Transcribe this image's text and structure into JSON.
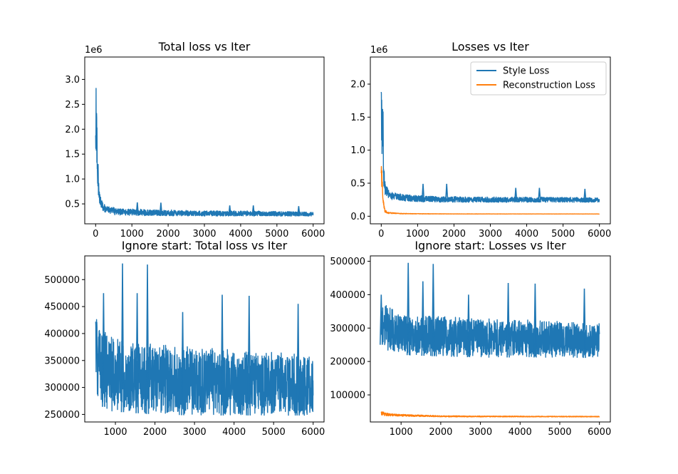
{
  "chart_data": [
    {
      "type": "line",
      "title": "Total loss vs Iter",
      "xlabel": "",
      "ylabel": "",
      "y_offset_label": "1e6",
      "xlim": [
        -300,
        6300
      ],
      "ylim": [
        100000,
        3450000
      ],
      "xticks": [
        0,
        1000,
        2000,
        3000,
        4000,
        5000,
        6000
      ],
      "xtick_labels": [
        "0",
        "1000",
        "2000",
        "3000",
        "4000",
        "5000",
        "6000"
      ],
      "yticks": [
        500000,
        1000000,
        1500000,
        2000000,
        2500000,
        3000000
      ],
      "ytick_labels": [
        "0.5",
        "1.0",
        "1.5",
        "2.0",
        "2.5",
        "3.0"
      ],
      "grid": false,
      "series": [
        {
          "color": "#1f77b4",
          "upper_x": [
            0,
            10,
            30,
            50,
            80,
            120,
            200,
            300,
            500,
            800,
            1200,
            1500,
            2000,
            3000,
            4000,
            5000,
            6000
          ],
          "upper_y": [
            3320000,
            3000000,
            2500000,
            2200000,
            1000000,
            700000,
            550000,
            450000,
            430000,
            400000,
            400000,
            380000,
            380000,
            360000,
            360000,
            350000,
            340000
          ],
          "lower_x": [
            0,
            50,
            100,
            200,
            500,
            1000,
            2000,
            3000,
            4000,
            5000,
            6000
          ],
          "lower_y": [
            1000000,
            700000,
            500000,
            350000,
            280000,
            265000,
            260000,
            255000,
            255000,
            255000,
            255000
          ],
          "spikes": [
            [
              1150,
              530000
            ],
            [
              1800,
              525000
            ],
            [
              3700,
              470000
            ],
            [
              4350,
              470000
            ],
            [
              5600,
              455000
            ]
          ]
        }
      ]
    },
    {
      "type": "line",
      "title": "Losses vs Iter",
      "xlabel": "",
      "ylabel": "",
      "y_offset_label": "1e6",
      "xlim": [
        -300,
        6300
      ],
      "ylim": [
        -115000,
        2410000
      ],
      "xticks": [
        0,
        1000,
        2000,
        3000,
        4000,
        5000,
        6000
      ],
      "xtick_labels": [
        "0",
        "1000",
        "2000",
        "3000",
        "4000",
        "5000",
        "6000"
      ],
      "yticks": [
        0,
        500000,
        1000000,
        1500000,
        2000000
      ],
      "ytick_labels": [
        "0.0",
        "0.5",
        "1.0",
        "1.5",
        "2.0"
      ],
      "grid": false,
      "legend_position": "top-right",
      "series": [
        {
          "name": "Style Loss",
          "color": "#1f77b4",
          "upper_x": [
            0,
            10,
            30,
            50,
            80,
            120,
            200,
            300,
            500,
            800,
            1200,
            1500,
            2000,
            3000,
            4000,
            5000,
            6000
          ],
          "upper_y": [
            2310000,
            2100000,
            1700000,
            1650000,
            700000,
            500000,
            400000,
            360000,
            340000,
            320000,
            310000,
            300000,
            300000,
            290000,
            290000,
            290000,
            280000
          ],
          "lower_x": [
            0,
            50,
            100,
            200,
            500,
            1000,
            2000,
            3000,
            4000,
            5000,
            6000
          ],
          "lower_y": [
            800000,
            500000,
            330000,
            260000,
            230000,
            215000,
            210000,
            210000,
            210000,
            210000,
            210000
          ],
          "spikes": [
            [
              1150,
              490000
            ],
            [
              1800,
              490000
            ],
            [
              3700,
              430000
            ],
            [
              4350,
              430000
            ],
            [
              5600,
              415000
            ]
          ]
        },
        {
          "name": "Reconstruction Loss",
          "color": "#ff7f0e",
          "upper_x": [
            0,
            20,
            50,
            100,
            200,
            500,
            1000,
            2000,
            6000
          ],
          "upper_y": [
            1030000,
            700000,
            300000,
            100000,
            60000,
            45000,
            40000,
            36000,
            35000
          ],
          "lower_x": [
            0,
            50,
            100,
            200,
            500,
            1000,
            2000,
            6000
          ],
          "lower_y": [
            400000,
            150000,
            60000,
            40000,
            36000,
            34000,
            33000,
            33000
          ],
          "spikes": []
        }
      ]
    },
    {
      "type": "line",
      "title": "Ignore start: Total loss vs Iter",
      "xlabel": "",
      "ylabel": "",
      "xlim": [
        225,
        6275
      ],
      "ylim": [
        236000,
        544000
      ],
      "xticks": [
        1000,
        2000,
        3000,
        4000,
        5000,
        6000
      ],
      "xtick_labels": [
        "1000",
        "2000",
        "3000",
        "4000",
        "5000",
        "6000"
      ],
      "yticks": [
        250000,
        300000,
        350000,
        400000,
        450000,
        500000
      ],
      "ytick_labels": [
        "250000",
        "300000",
        "350000",
        "400000",
        "450000",
        "500000"
      ],
      "grid": false,
      "series": [
        {
          "color": "#1f77b4",
          "upper_x": [
            500,
            600,
            800,
            1000,
            1500,
            2000,
            3000,
            4000,
            5000,
            6000
          ],
          "upper_y": [
            440000,
            410000,
            400000,
            390000,
            385000,
            380000,
            375000,
            370000,
            365000,
            360000
          ],
          "lower_x": [
            500,
            600,
            800,
            1000,
            2000,
            3000,
            4000,
            5000,
            6000
          ],
          "lower_y": [
            300000,
            270000,
            258000,
            255000,
            250000,
            248000,
            248000,
            248000,
            248000
          ],
          "spikes": [
            [
              700,
              475000
            ],
            [
              1180,
              530000
            ],
            [
              1550,
              475000
            ],
            [
              1810,
              528000
            ],
            [
              3700,
              472000
            ],
            [
              4380,
              470000
            ],
            [
              5620,
              455000
            ],
            [
              2700,
              440000
            ]
          ]
        }
      ]
    },
    {
      "type": "line",
      "title": "Ignore start: Losses vs Iter",
      "xlabel": "",
      "ylabel": "",
      "xlim": [
        225,
        6275
      ],
      "ylim": [
        19000,
        516000
      ],
      "xticks": [
        1000,
        2000,
        3000,
        4000,
        5000,
        6000
      ],
      "xtick_labels": [
        "1000",
        "2000",
        "3000",
        "4000",
        "5000",
        "6000"
      ],
      "yticks": [
        100000,
        200000,
        300000,
        400000,
        500000
      ],
      "ytick_labels": [
        "100000",
        "200000",
        "300000",
        "400000",
        "500000"
      ],
      "grid": false,
      "series": [
        {
          "name": "Style Loss",
          "color": "#1f77b4",
          "upper_x": [
            500,
            600,
            800,
            1000,
            1500,
            2000,
            3000,
            4000,
            5000,
            6000
          ],
          "upper_y": [
            390000,
            370000,
            355000,
            345000,
            340000,
            335000,
            330000,
            325000,
            320000,
            315000
          ],
          "lower_x": [
            500,
            600,
            800,
            1000,
            2000,
            3000,
            4000,
            5000,
            6000
          ],
          "lower_y": [
            250000,
            235000,
            225000,
            220000,
            215000,
            212000,
            212000,
            212000,
            210000
          ],
          "spikes": [
            [
              500,
              400000
            ],
            [
              1180,
              495000
            ],
            [
              1810,
              492000
            ],
            [
              1550,
              440000
            ],
            [
              3700,
              435000
            ],
            [
              4380,
              433000
            ],
            [
              5620,
              418000
            ],
            [
              2700,
              400000
            ]
          ]
        },
        {
          "name": "Reconstruction Loss",
          "color": "#ff7f0e",
          "upper_x": [
            500,
            600,
            700,
            1000,
            1500,
            2000,
            3000,
            6000
          ],
          "upper_y": [
            50000,
            48000,
            44000,
            42000,
            40000,
            38000,
            37000,
            36000
          ],
          "lower_x": [
            500,
            600,
            1000,
            2000,
            6000
          ],
          "lower_y": [
            40000,
            37000,
            36000,
            34000,
            34000
          ],
          "spikes": []
        }
      ]
    }
  ]
}
